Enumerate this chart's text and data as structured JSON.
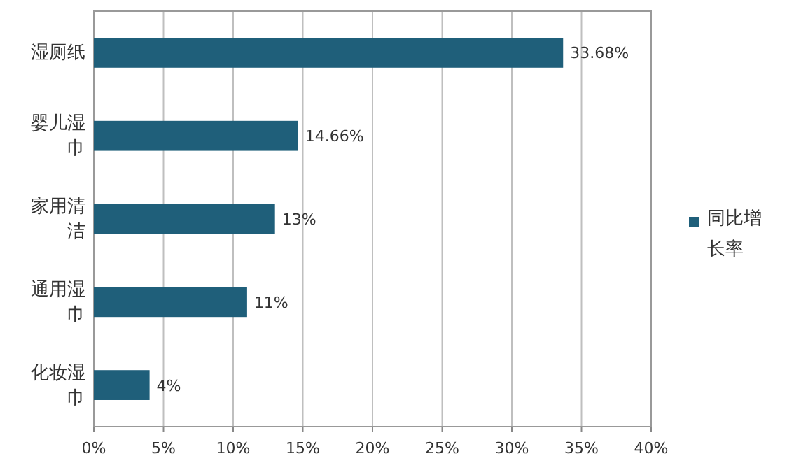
{
  "chart_data": {
    "type": "bar",
    "orientation": "horizontal",
    "categories": [
      "湿厕纸",
      "婴儿湿巾",
      "家用清洁",
      "通用湿巾",
      "化妆湿巾"
    ],
    "series": [
      {
        "name": "同比增长率",
        "color": "#1f5f7a",
        "values": [
          33.68,
          14.66,
          13,
          11,
          4
        ],
        "value_labels": [
          "33.68%",
          "14.66%",
          "13%",
          "11%",
          "4%"
        ]
      }
    ],
    "xlim": [
      0,
      40
    ],
    "xticks": [
      {
        "value": 0,
        "label": "0%"
      },
      {
        "value": 5,
        "label": "5%"
      },
      {
        "value": 10,
        "label": "10%"
      },
      {
        "value": 15,
        "label": "15%"
      },
      {
        "value": 20,
        "label": "20%"
      },
      {
        "value": 25,
        "label": "25%"
      },
      {
        "value": 30,
        "label": "30%"
      },
      {
        "value": 35,
        "label": "35%"
      },
      {
        "value": 40,
        "label": "40%"
      }
    ],
    "grid": "x",
    "legend": "right"
  }
}
